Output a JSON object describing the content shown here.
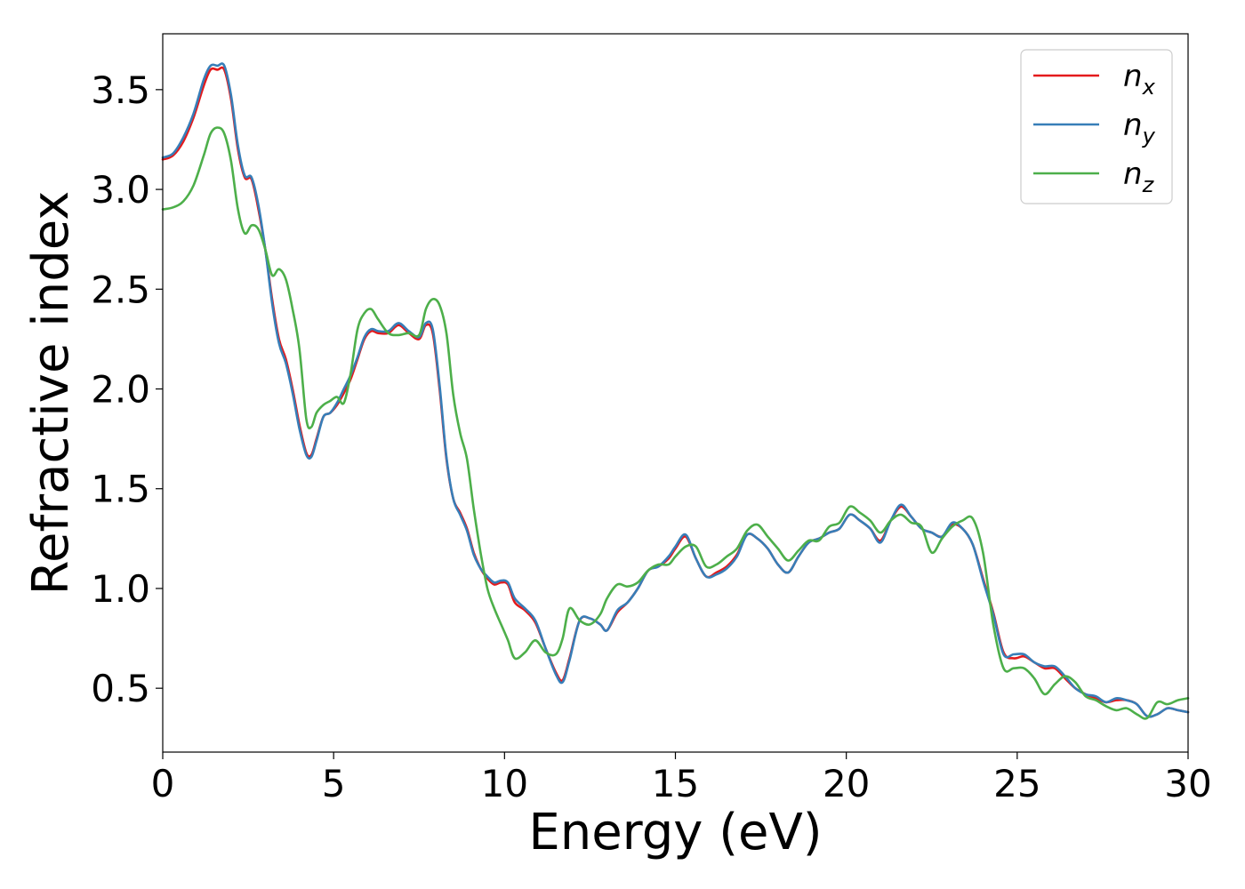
{
  "chart_data": {
    "type": "line",
    "xlabel": "Energy (eV)",
    "ylabel": "Refractive index",
    "xlim": [
      0,
      30
    ],
    "ylim": [
      0.18,
      3.78
    ],
    "xticks": [
      0,
      5,
      10,
      15,
      20,
      25,
      30
    ],
    "xtick_labels": [
      "0",
      "5",
      "10",
      "15",
      "20",
      "25",
      "30"
    ],
    "yticks": [
      0.5,
      1.0,
      1.5,
      2.0,
      2.5,
      3.0,
      3.5
    ],
    "ytick_labels": [
      "0.5",
      "1.0",
      "1.5",
      "2.0",
      "2.5",
      "3.0",
      "3.5"
    ],
    "grid": false,
    "legend_position": "top-right",
    "series": [
      {
        "name": "n_x",
        "label_base": "n",
        "label_sub": "x",
        "color": "#e41a1c",
        "x": [
          0,
          0.3,
          0.6,
          0.9,
          1.2,
          1.4,
          1.6,
          1.8,
          2.0,
          2.2,
          2.4,
          2.6,
          2.8,
          3.0,
          3.2,
          3.4,
          3.6,
          3.8,
          4.0,
          4.2,
          4.35,
          4.5,
          4.7,
          4.9,
          5.1,
          5.3,
          5.5,
          5.7,
          5.9,
          6.1,
          6.3,
          6.6,
          6.9,
          7.2,
          7.5,
          7.7,
          7.9,
          8.1,
          8.3,
          8.5,
          8.7,
          8.9,
          9.1,
          9.3,
          9.5,
          9.7,
          9.9,
          10.1,
          10.3,
          10.6,
          10.9,
          11.2,
          11.5,
          11.7,
          11.9,
          12.2,
          12.5,
          12.8,
          13.0,
          13.3,
          13.6,
          13.9,
          14.2,
          14.5,
          14.8,
          15.0,
          15.3,
          15.6,
          15.9,
          16.2,
          16.5,
          16.8,
          17.1,
          17.4,
          17.7,
          18.0,
          18.3,
          18.6,
          18.9,
          19.2,
          19.5,
          19.8,
          20.1,
          20.4,
          20.7,
          21.0,
          21.3,
          21.6,
          21.9,
          22.2,
          22.5,
          22.8,
          23.1,
          23.4,
          23.7,
          24.0,
          24.3,
          24.6,
          24.9,
          25.2,
          25.5,
          25.8,
          26.1,
          26.4,
          26.7,
          27.0,
          27.3,
          27.6,
          27.9,
          28.2,
          28.5,
          28.8,
          29.1,
          29.4,
          29.7,
          30.0
        ],
        "y": [
          3.15,
          3.17,
          3.24,
          3.36,
          3.52,
          3.6,
          3.6,
          3.6,
          3.45,
          3.2,
          3.06,
          3.05,
          2.9,
          2.7,
          2.45,
          2.25,
          2.15,
          2.0,
          1.82,
          1.68,
          1.67,
          1.75,
          1.86,
          1.88,
          1.92,
          1.98,
          2.05,
          2.15,
          2.25,
          2.29,
          2.28,
          2.28,
          2.32,
          2.28,
          2.25,
          2.32,
          2.28,
          2.0,
          1.65,
          1.45,
          1.38,
          1.3,
          1.18,
          1.1,
          1.05,
          1.02,
          1.03,
          1.02,
          0.93,
          0.89,
          0.83,
          0.7,
          0.58,
          0.54,
          0.65,
          0.84,
          0.85,
          0.82,
          0.79,
          0.88,
          0.93,
          1.0,
          1.09,
          1.11,
          1.15,
          1.2,
          1.26,
          1.15,
          1.06,
          1.08,
          1.11,
          1.17,
          1.27,
          1.25,
          1.2,
          1.12,
          1.08,
          1.16,
          1.23,
          1.25,
          1.28,
          1.3,
          1.37,
          1.34,
          1.3,
          1.24,
          1.34,
          1.41,
          1.36,
          1.3,
          1.28,
          1.26,
          1.32,
          1.3,
          1.22,
          1.05,
          0.88,
          0.68,
          0.65,
          0.66,
          0.63,
          0.6,
          0.6,
          0.55,
          0.5,
          0.47,
          0.45,
          0.43,
          0.44,
          0.44,
          0.42,
          0.36,
          0.37,
          0.4,
          0.39,
          0.38
        ]
      },
      {
        "name": "n_y",
        "label_base": "n",
        "label_sub": "y",
        "color": "#377eb8",
        "x": [
          0,
          0.3,
          0.6,
          0.9,
          1.2,
          1.4,
          1.6,
          1.8,
          2.0,
          2.2,
          2.4,
          2.6,
          2.8,
          3.0,
          3.2,
          3.4,
          3.6,
          3.8,
          4.0,
          4.2,
          4.35,
          4.5,
          4.7,
          4.9,
          5.1,
          5.3,
          5.5,
          5.7,
          5.9,
          6.1,
          6.3,
          6.6,
          6.9,
          7.2,
          7.5,
          7.7,
          7.9,
          8.1,
          8.3,
          8.5,
          8.7,
          8.9,
          9.1,
          9.3,
          9.5,
          9.7,
          9.9,
          10.1,
          10.3,
          10.6,
          10.9,
          11.2,
          11.5,
          11.7,
          11.9,
          12.2,
          12.5,
          12.8,
          13.0,
          13.3,
          13.6,
          13.9,
          14.2,
          14.5,
          14.8,
          15.0,
          15.3,
          15.6,
          15.9,
          16.2,
          16.5,
          16.8,
          17.1,
          17.4,
          17.7,
          18.0,
          18.3,
          18.6,
          18.9,
          19.2,
          19.5,
          19.8,
          20.1,
          20.4,
          20.7,
          21.0,
          21.3,
          21.6,
          21.9,
          22.2,
          22.5,
          22.8,
          23.1,
          23.4,
          23.7,
          24.0,
          24.3,
          24.6,
          24.9,
          25.2,
          25.5,
          25.8,
          26.1,
          26.4,
          26.7,
          27.0,
          27.3,
          27.6,
          27.9,
          28.2,
          28.5,
          28.8,
          29.1,
          29.4,
          29.7,
          30.0
        ],
        "y": [
          3.16,
          3.18,
          3.26,
          3.38,
          3.55,
          3.62,
          3.62,
          3.62,
          3.47,
          3.22,
          3.07,
          3.06,
          2.92,
          2.7,
          2.43,
          2.23,
          2.13,
          1.98,
          1.8,
          1.67,
          1.66,
          1.74,
          1.86,
          1.88,
          1.93,
          2.0,
          2.07,
          2.16,
          2.26,
          2.3,
          2.29,
          2.29,
          2.33,
          2.29,
          2.26,
          2.33,
          2.3,
          2.02,
          1.66,
          1.45,
          1.37,
          1.29,
          1.17,
          1.1,
          1.06,
          1.03,
          1.04,
          1.03,
          0.95,
          0.9,
          0.84,
          0.7,
          0.57,
          0.53,
          0.64,
          0.84,
          0.85,
          0.82,
          0.79,
          0.89,
          0.93,
          1.0,
          1.09,
          1.11,
          1.16,
          1.21,
          1.27,
          1.15,
          1.06,
          1.07,
          1.1,
          1.16,
          1.27,
          1.25,
          1.2,
          1.12,
          1.08,
          1.16,
          1.23,
          1.25,
          1.28,
          1.3,
          1.37,
          1.34,
          1.3,
          1.23,
          1.34,
          1.42,
          1.36,
          1.3,
          1.28,
          1.26,
          1.33,
          1.3,
          1.22,
          1.04,
          0.87,
          0.67,
          0.67,
          0.67,
          0.63,
          0.61,
          0.61,
          0.56,
          0.5,
          0.47,
          0.46,
          0.43,
          0.45,
          0.44,
          0.42,
          0.36,
          0.37,
          0.4,
          0.39,
          0.38
        ]
      },
      {
        "name": "n_z",
        "label_base": "n",
        "label_sub": "z",
        "color": "#4daf4a",
        "x": [
          0,
          0.3,
          0.6,
          0.9,
          1.2,
          1.4,
          1.6,
          1.8,
          2.0,
          2.2,
          2.4,
          2.6,
          2.8,
          3.0,
          3.2,
          3.4,
          3.6,
          3.8,
          4.0,
          4.2,
          4.35,
          4.5,
          4.7,
          4.9,
          5.1,
          5.3,
          5.5,
          5.7,
          5.9,
          6.1,
          6.3,
          6.6,
          6.9,
          7.2,
          7.5,
          7.7,
          7.9,
          8.1,
          8.3,
          8.5,
          8.7,
          8.9,
          9.1,
          9.3,
          9.5,
          9.7,
          9.9,
          10.1,
          10.3,
          10.6,
          10.9,
          11.2,
          11.5,
          11.7,
          11.9,
          12.2,
          12.5,
          12.8,
          13.0,
          13.3,
          13.6,
          13.9,
          14.2,
          14.5,
          14.8,
          15.0,
          15.3,
          15.6,
          15.9,
          16.2,
          16.5,
          16.8,
          17.1,
          17.4,
          17.7,
          18.0,
          18.3,
          18.6,
          18.9,
          19.2,
          19.5,
          19.8,
          20.1,
          20.4,
          20.7,
          21.0,
          21.3,
          21.6,
          21.9,
          22.2,
          22.5,
          22.8,
          23.1,
          23.4,
          23.7,
          24.0,
          24.3,
          24.6,
          24.9,
          25.2,
          25.5,
          25.8,
          26.1,
          26.4,
          26.7,
          27.0,
          27.3,
          27.6,
          27.9,
          28.2,
          28.5,
          28.8,
          29.1,
          29.4,
          29.7,
          30.0
        ],
        "y": [
          2.9,
          2.91,
          2.94,
          3.02,
          3.17,
          3.28,
          3.31,
          3.28,
          3.14,
          2.9,
          2.78,
          2.82,
          2.8,
          2.7,
          2.57,
          2.6,
          2.55,
          2.4,
          2.2,
          1.85,
          1.81,
          1.88,
          1.92,
          1.94,
          1.96,
          1.93,
          2.08,
          2.3,
          2.38,
          2.4,
          2.35,
          2.28,
          2.27,
          2.28,
          2.27,
          2.4,
          2.45,
          2.42,
          2.28,
          1.97,
          1.78,
          1.65,
          1.4,
          1.18,
          1.0,
          0.9,
          0.82,
          0.74,
          0.65,
          0.68,
          0.74,
          0.68,
          0.67,
          0.75,
          0.9,
          0.84,
          0.82,
          0.87,
          0.95,
          1.02,
          1.01,
          1.03,
          1.09,
          1.12,
          1.12,
          1.16,
          1.21,
          1.21,
          1.11,
          1.12,
          1.16,
          1.2,
          1.29,
          1.32,
          1.26,
          1.2,
          1.14,
          1.19,
          1.24,
          1.24,
          1.31,
          1.33,
          1.41,
          1.38,
          1.34,
          1.28,
          1.34,
          1.37,
          1.33,
          1.31,
          1.18,
          1.25,
          1.31,
          1.34,
          1.35,
          1.18,
          0.82,
          0.6,
          0.6,
          0.6,
          0.55,
          0.47,
          0.52,
          0.56,
          0.53,
          0.46,
          0.44,
          0.41,
          0.39,
          0.4,
          0.37,
          0.35,
          0.43,
          0.42,
          0.44,
          0.45
        ]
      }
    ]
  }
}
